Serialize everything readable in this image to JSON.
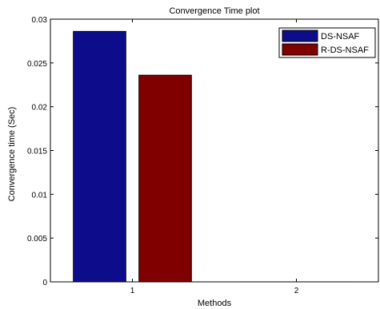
{
  "chart_data": {
    "type": "bar",
    "title": "Convergence Time plot",
    "xlabel": "Methods",
    "ylabel": "Convergence time (Sec)",
    "categories": [
      "1",
      "2"
    ],
    "ylim": [
      0,
      0.03
    ],
    "yticks": [
      "0",
      "0.005",
      "0.01",
      "0.015",
      "0.02",
      "0.025",
      "0.03"
    ],
    "series": [
      {
        "name": "DS-NSAF",
        "values": [
          0.0286,
          0
        ],
        "color": "#0d0d8c"
      },
      {
        "name": "R-DS-NSAF",
        "values": [
          0.0236,
          0
        ],
        "color": "#800000"
      }
    ],
    "legend_position": "top-right",
    "grid": false
  }
}
